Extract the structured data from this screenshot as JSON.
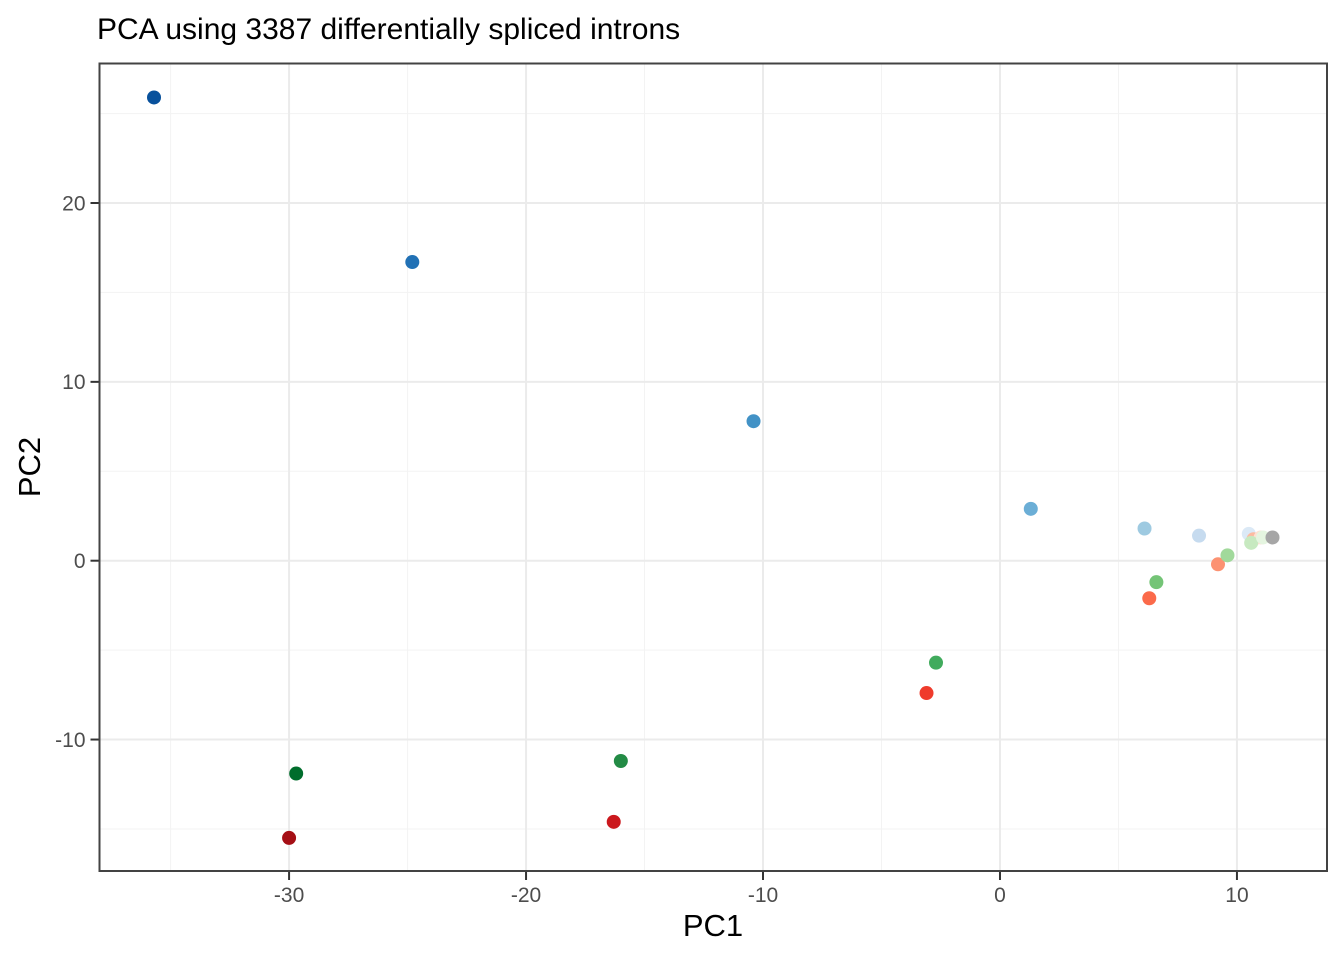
{
  "chart_data": {
    "type": "scatter",
    "title": "PCA using 3387 differentially spliced introns",
    "xlabel": "PC1",
    "ylabel": "PC2",
    "xlim": [
      -38.0,
      13.8
    ],
    "ylim": [
      -17.35,
      27.8
    ],
    "x_major_ticks": [
      -30,
      -20,
      -10,
      0,
      10
    ],
    "x_minor_ticks": [
      -35,
      -25,
      -15,
      -5,
      5
    ],
    "y_major_ticks": [
      20,
      10,
      0,
      -10
    ],
    "y_minor_ticks": [
      25,
      15,
      5,
      -5,
      -15
    ],
    "grid": true,
    "legend": "none",
    "series": [
      {
        "name": "blue-gradient",
        "points": [
          {
            "x": -35.7,
            "y": 25.9,
            "color": "#08519c"
          },
          {
            "x": -24.8,
            "y": 16.7,
            "color": "#2171b5"
          },
          {
            "x": -10.4,
            "y": 7.8,
            "color": "#4292c6"
          },
          {
            "x": 1.3,
            "y": 2.9,
            "color": "#6baed6"
          },
          {
            "x": 6.1,
            "y": 1.8,
            "color": "#9ecae1"
          },
          {
            "x": 8.4,
            "y": 1.4,
            "color": "#c6dbef"
          },
          {
            "x": 10.5,
            "y": 1.5,
            "color": "#dbe9f6"
          }
        ]
      },
      {
        "name": "red-gradient",
        "points": [
          {
            "x": -30.0,
            "y": -15.5,
            "color": "#a50f15"
          },
          {
            "x": -16.3,
            "y": -14.6,
            "color": "#cb181d"
          },
          {
            "x": -3.1,
            "y": -7.4,
            "color": "#ef3b2c"
          },
          {
            "x": 6.3,
            "y": -2.1,
            "color": "#fb6a4a"
          },
          {
            "x": 9.2,
            "y": -0.2,
            "color": "#fc9272"
          },
          {
            "x": 10.7,
            "y": 1.2,
            "color": "#fcbba1"
          },
          {
            "x": 11.0,
            "y": 1.3,
            "color": "#fee0d2"
          }
        ]
      },
      {
        "name": "green-gradient",
        "points": [
          {
            "x": -29.7,
            "y": -11.9,
            "color": "#006d2c"
          },
          {
            "x": -16.0,
            "y": -11.2,
            "color": "#238b45"
          },
          {
            "x": -2.7,
            "y": -5.7,
            "color": "#41ab5d"
          },
          {
            "x": 6.6,
            "y": -1.2,
            "color": "#74c476"
          },
          {
            "x": 9.6,
            "y": 0.3,
            "color": "#a1d99b"
          },
          {
            "x": 10.6,
            "y": 1.0,
            "color": "#c7e9c0"
          },
          {
            "x": 11.1,
            "y": 1.3,
            "color": "#e5f5e0"
          }
        ]
      },
      {
        "name": "gray",
        "points": [
          {
            "x": 11.5,
            "y": 1.3,
            "color": "#a6a6a6"
          }
        ]
      }
    ]
  },
  "style": {
    "panel_border_color": "#434343",
    "grid_major_color": "#ebebeb",
    "grid_minor_color": "#f3f3f3",
    "tick_mark_color": "#333333",
    "tick_label_color": "#4d4d4d",
    "point_radius": 7
  }
}
